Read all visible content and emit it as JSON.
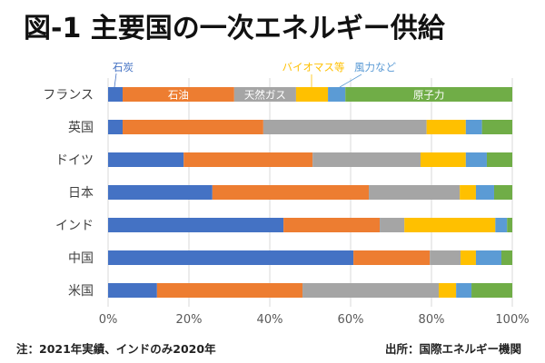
{
  "title": "図-1 主要国の一次エネルギー供給",
  "note": "注：2021年実績、インドのみ2020年",
  "source": "出所：国際エネルギー機関",
  "chart_data": {
    "type": "bar",
    "orientation": "horizontal",
    "stacked": "percent",
    "categories": [
      "フランス",
      "英国",
      "ドイツ",
      "日本",
      "インド",
      "中国",
      "米国"
    ],
    "series": [
      {
        "name": "石炭",
        "color": "#4472C4",
        "values": [
          3.6,
          3.6,
          18.7,
          25.8,
          43.4,
          60.7,
          12.1
        ]
      },
      {
        "name": "石油",
        "color": "#ED7D31",
        "values": [
          27.6,
          34.8,
          31.9,
          38.7,
          23.8,
          18.9,
          36.0
        ]
      },
      {
        "name": "天然ガス",
        "color": "#A5A5A5",
        "values": [
          15.3,
          40.4,
          26.7,
          22.5,
          6.1,
          7.6,
          33.7
        ]
      },
      {
        "name": "バイオマス等",
        "color": "#FFC000",
        "values": [
          7.9,
          9.7,
          11.2,
          4.0,
          22.5,
          3.8,
          4.3
        ]
      },
      {
        "name": "風力など",
        "color": "#5B9BD5",
        "values": [
          4.3,
          4.0,
          5.2,
          4.5,
          2.9,
          6.3,
          3.8
        ]
      },
      {
        "name": "原子力",
        "color": "#70AD47",
        "values": [
          41.3,
          7.5,
          6.3,
          4.5,
          1.3,
          2.7,
          10.1
        ]
      }
    ],
    "xticks": [
      "0%",
      "20%",
      "40%",
      "60%",
      "80%",
      "100%"
    ],
    "xlim": [
      0,
      100
    ],
    "grid": true,
    "annotations": {
      "inside_labels_on_first_bar": [
        "石油",
        "天然ガス",
        "原子力"
      ],
      "callout_labels": [
        "石炭",
        "バイオマス等",
        "風力など"
      ]
    },
    "title": "図-1 主要国の一次エネルギー供給",
    "xlabel": "",
    "ylabel": ""
  }
}
